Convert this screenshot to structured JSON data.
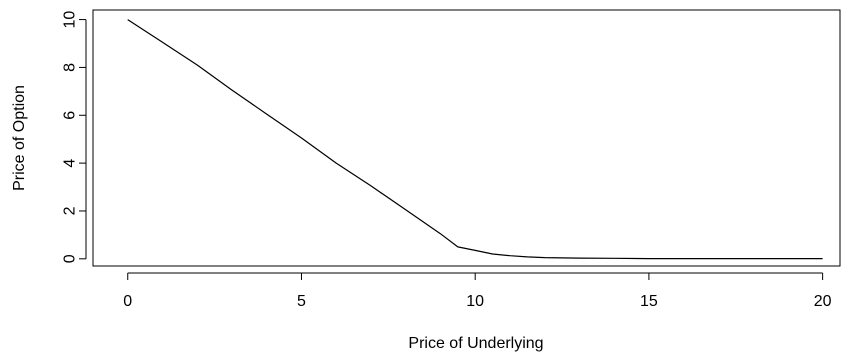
{
  "chart_data": {
    "type": "line",
    "xlabel": "Price of Underlying",
    "ylabel": "Price of Option",
    "xlim": [
      -1,
      20.5
    ],
    "ylim": [
      -0.3,
      10.4
    ],
    "x_ticks": [
      0,
      5,
      10,
      15,
      20
    ],
    "y_ticks": [
      0,
      2,
      4,
      6,
      8,
      10
    ],
    "grid": false,
    "series": [
      {
        "color": "#000000",
        "x": [
          0,
          1,
          2,
          3,
          4,
          5,
          6,
          7,
          8,
          9,
          9.5,
          10,
          10.5,
          11,
          11.5,
          12,
          13,
          14,
          15,
          16,
          17,
          18,
          19,
          20
        ],
        "y": [
          10,
          9.05,
          8.1,
          7.05,
          6.05,
          5.05,
          4.0,
          3.05,
          2.05,
          1.05,
          0.5,
          0.35,
          0.2,
          0.13,
          0.08,
          0.05,
          0.03,
          0.02,
          0.01,
          0.01,
          0.01,
          0.01,
          0.01,
          0.01
        ]
      }
    ]
  }
}
